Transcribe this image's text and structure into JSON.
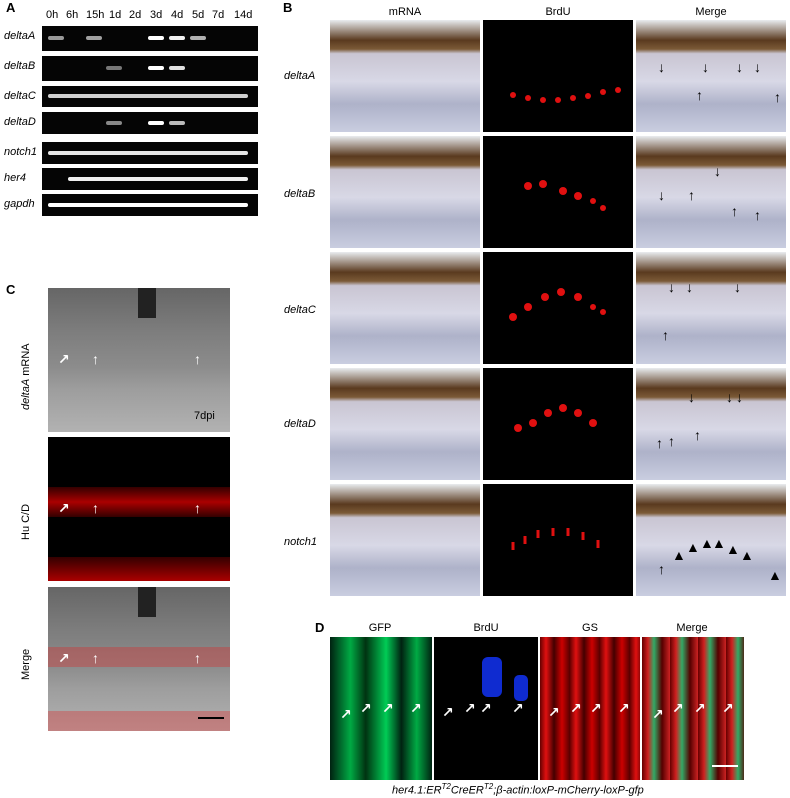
{
  "panels": {
    "A": "A",
    "B": "B",
    "C": "C",
    "D": "D"
  },
  "panelA": {
    "timepoints": [
      "0h",
      "6h",
      "15h",
      "1d",
      "2d",
      "3d",
      "4d",
      "5d",
      "7d",
      "14d"
    ],
    "genes": [
      "deltaA",
      "deltaB",
      "deltaC",
      "deltaD",
      "notch1",
      "her4",
      "gapdh"
    ]
  },
  "panelB": {
    "columns": [
      "mRNA",
      "BrdU",
      "Merge"
    ],
    "rows": [
      "deltaA",
      "deltaB",
      "deltaC",
      "deltaD",
      "notch1"
    ]
  },
  "panelC": {
    "rows": [
      {
        "label_italic": "deltaA",
        "label_rest": " mRNA"
      },
      {
        "label_italic": "",
        "label_rest": "Hu C/D"
      },
      {
        "label_italic": "",
        "label_rest": "Merge"
      }
    ],
    "inset": "7dpi"
  },
  "panelD": {
    "columns": [
      "GFP",
      "BrdU",
      "GS",
      "Merge"
    ],
    "caption_parts": [
      "her4.1:ER",
      "T2",
      "CreER",
      "T2",
      ";β-actin:loxP-mCherry-loxP-gfp"
    ]
  },
  "colors": {
    "green": "#00c800",
    "blue": "#1020e0",
    "red": "#e01010",
    "gel": "#050505"
  }
}
